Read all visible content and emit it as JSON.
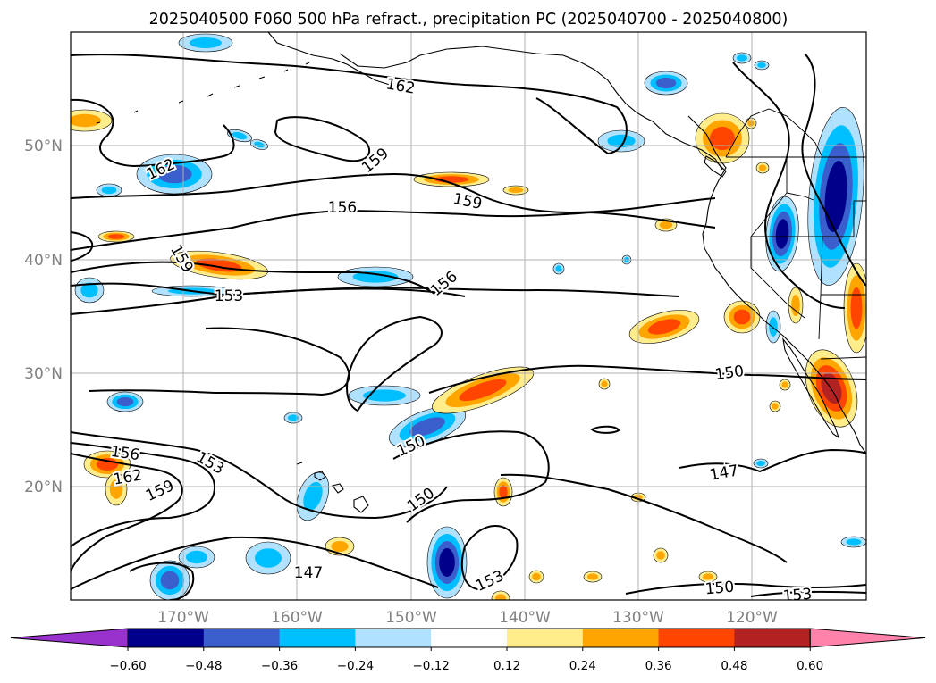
{
  "title": "2025040500 F060 500 hPa refract., precipitation PC (2025040700 - 2025040800)",
  "map": {
    "lon_labels": [
      "170°W",
      "160°W",
      "150°W",
      "140°W",
      "130°W",
      "120°W"
    ],
    "lat_labels": [
      "50°N",
      "40°N",
      "30°N",
      "20°N"
    ]
  },
  "contour_labels": [
    "162",
    "159",
    "159",
    "156",
    "162",
    "159",
    "156",
    "153",
    "150",
    "150",
    "150",
    "156",
    "153",
    "162",
    "159",
    "147",
    "147",
    "153",
    "150",
    "153"
  ],
  "colorbar": {
    "tick_labels": [
      "−0.60",
      "−0.48",
      "−0.36",
      "−0.24",
      "−0.12",
      "0.12",
      "0.24",
      "0.36",
      "0.48",
      "0.60"
    ],
    "colors": [
      "#9932cc",
      "#00008b",
      "#3a5fcd",
      "#00bfff",
      "#b0e2ff",
      "#ffffff",
      "#ffec8b",
      "#ffa500",
      "#ff4500",
      "#b22222",
      "#ff82ab"
    ]
  },
  "fill_colors": {
    "light_blue": "#b0e2ff",
    "blue": "#00bfff",
    "royal": "#3a5fcd",
    "navy": "#00008b",
    "yellow": "#ffec8b",
    "orange": "#ffa500",
    "red_orange": "#ff4500",
    "dark_red": "#b22222"
  }
}
